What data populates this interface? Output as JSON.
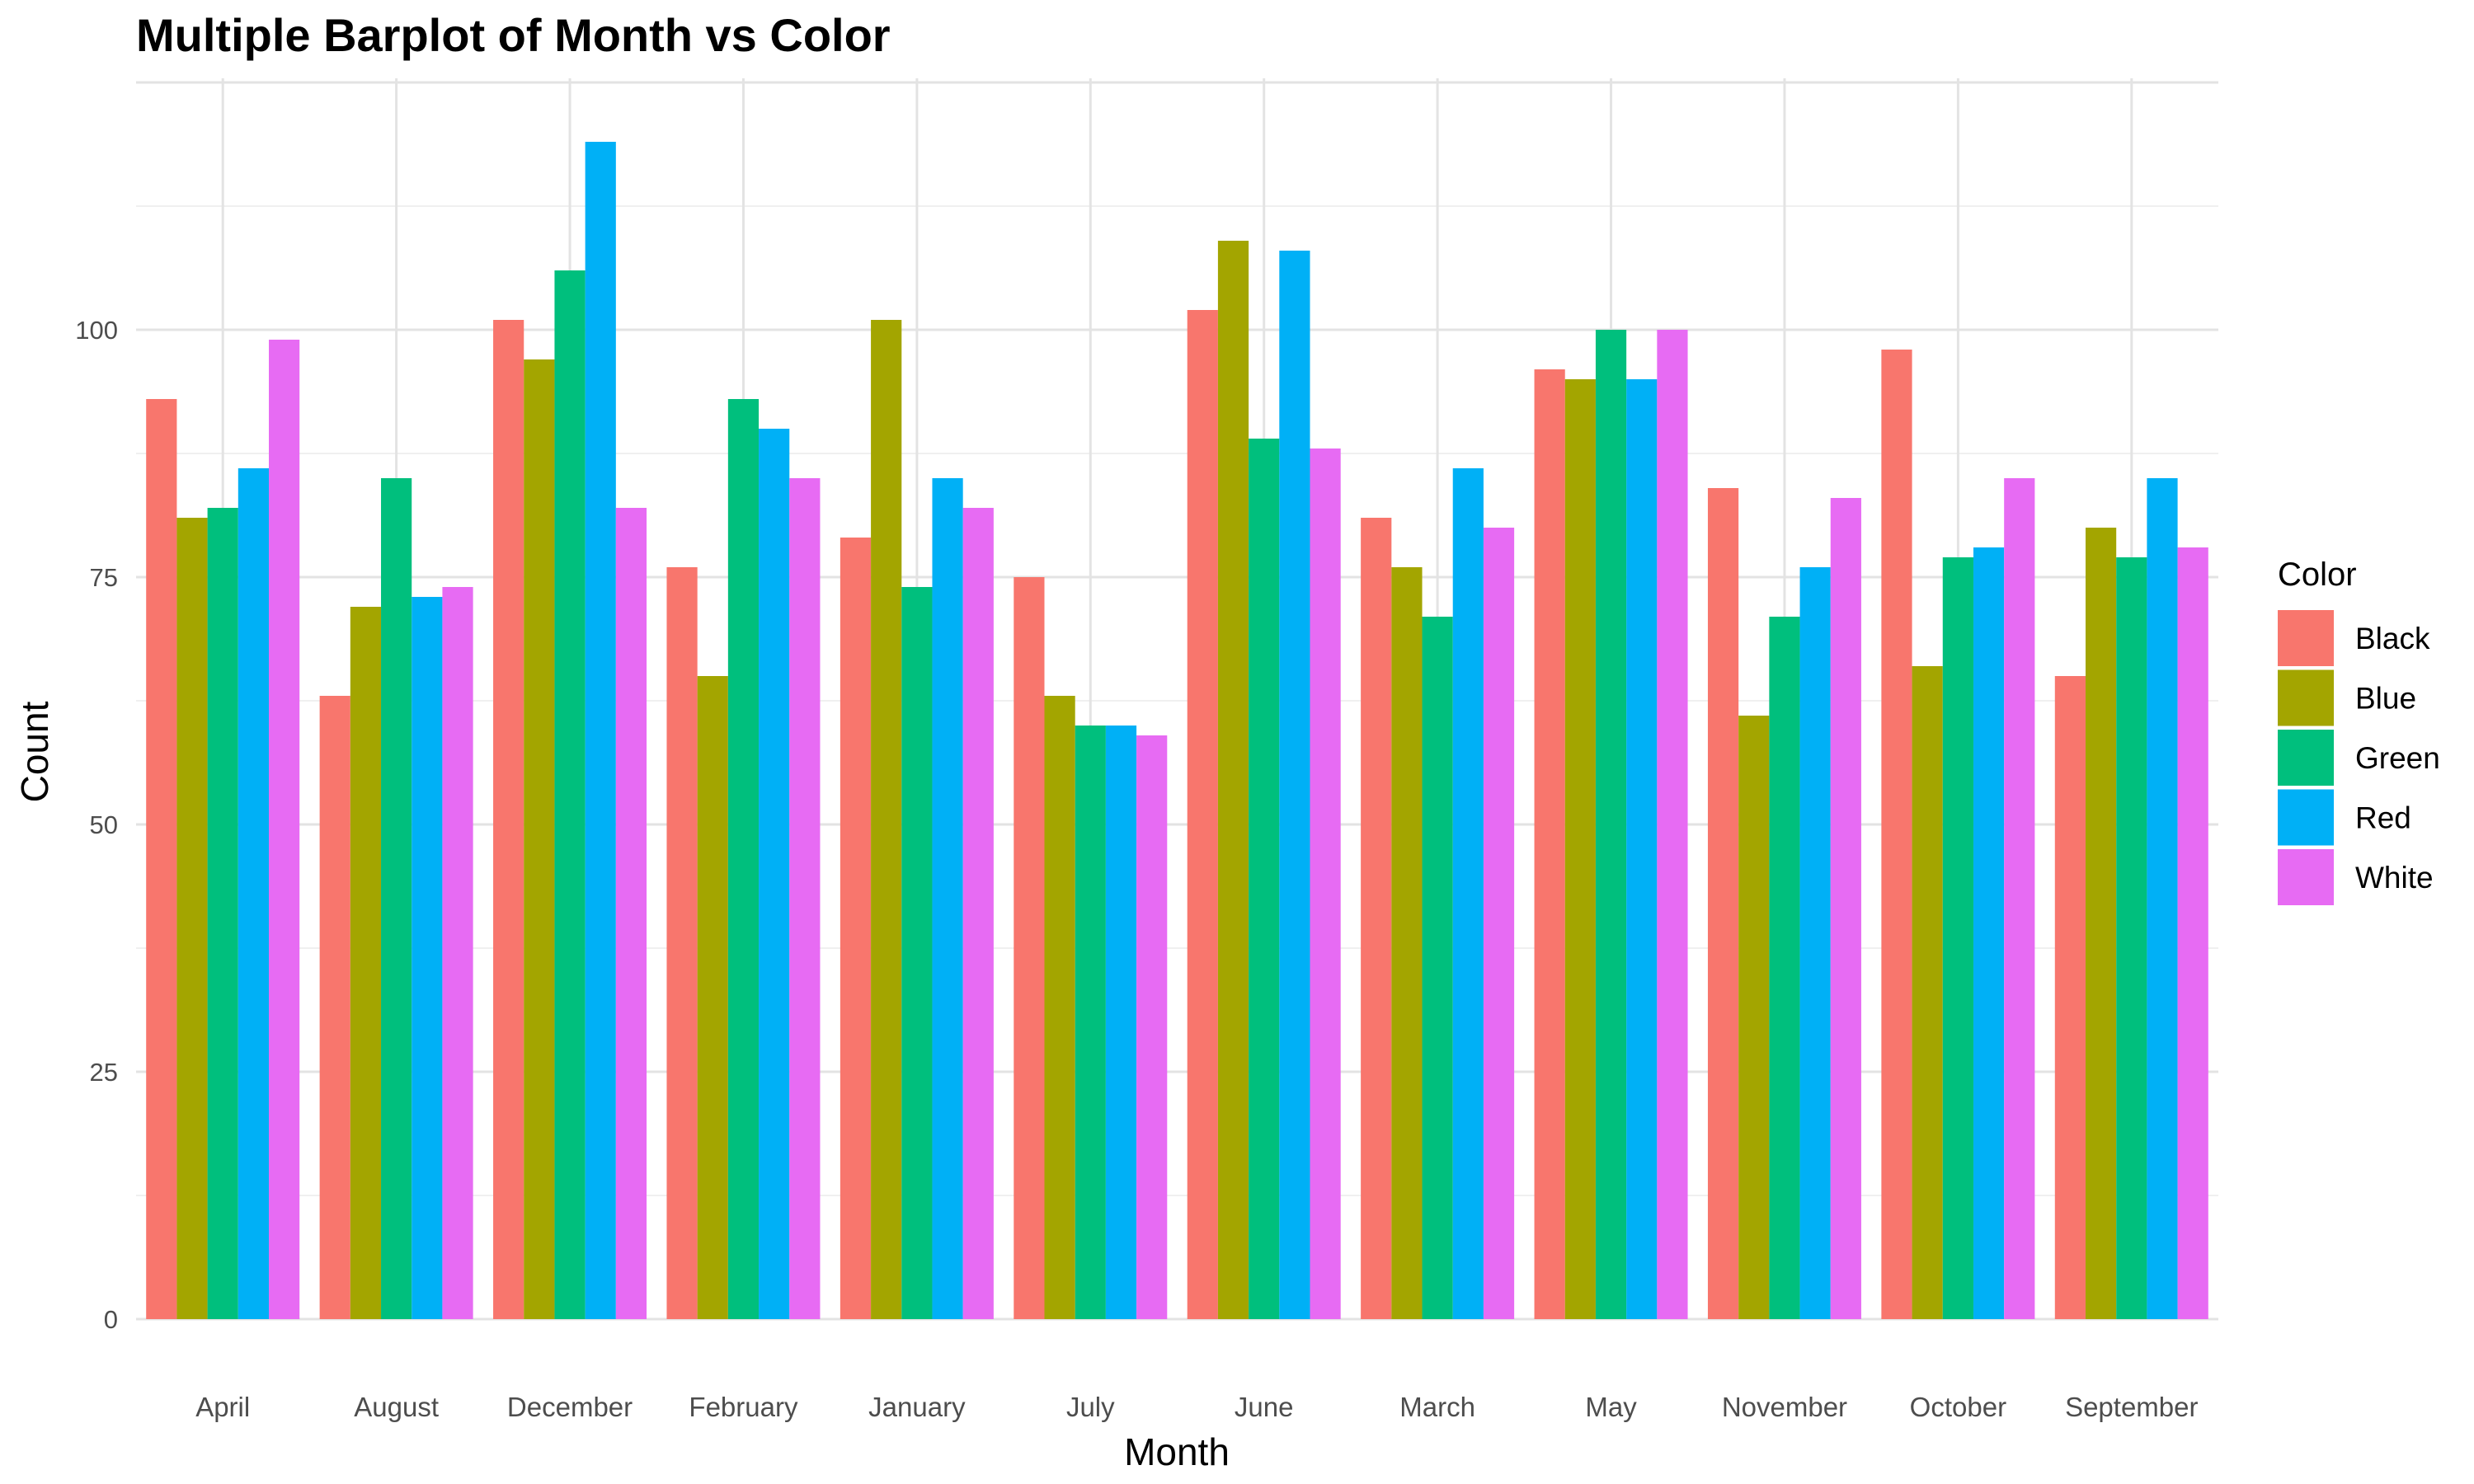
{
  "chart_data": {
    "type": "bar",
    "title": "Multiple Barplot of Month vs Color",
    "xlabel": "Month",
    "ylabel": "Count",
    "ylim": [
      0,
      125
    ],
    "yticks": [
      0,
      25,
      50,
      75,
      100
    ],
    "grid": true,
    "legend": {
      "title": "Color",
      "placement": "right"
    },
    "categories": [
      "April",
      "August",
      "December",
      "February",
      "January",
      "July",
      "June",
      "March",
      "May",
      "November",
      "October",
      "September"
    ],
    "series": [
      {
        "name": "Black",
        "color": "#F8766D",
        "values": [
          93,
          63,
          101,
          76,
          79,
          75,
          102,
          81,
          96,
          84,
          98,
          65
        ]
      },
      {
        "name": "Blue",
        "color": "#A3A500",
        "values": [
          81,
          72,
          97,
          65,
          101,
          63,
          109,
          76,
          95,
          61,
          66,
          80
        ]
      },
      {
        "name": "Green",
        "color": "#00BF7D",
        "values": [
          82,
          85,
          106,
          93,
          74,
          60,
          89,
          71,
          100,
          71,
          77,
          77
        ]
      },
      {
        "name": "Red",
        "color": "#00B0F6",
        "values": [
          86,
          73,
          119,
          90,
          85,
          60,
          108,
          86,
          95,
          76,
          78,
          85
        ]
      },
      {
        "name": "White",
        "color": "#E76BF3",
        "values": [
          99,
          74,
          82,
          85,
          82,
          59,
          88,
          80,
          100,
          83,
          85,
          78
        ]
      }
    ]
  }
}
